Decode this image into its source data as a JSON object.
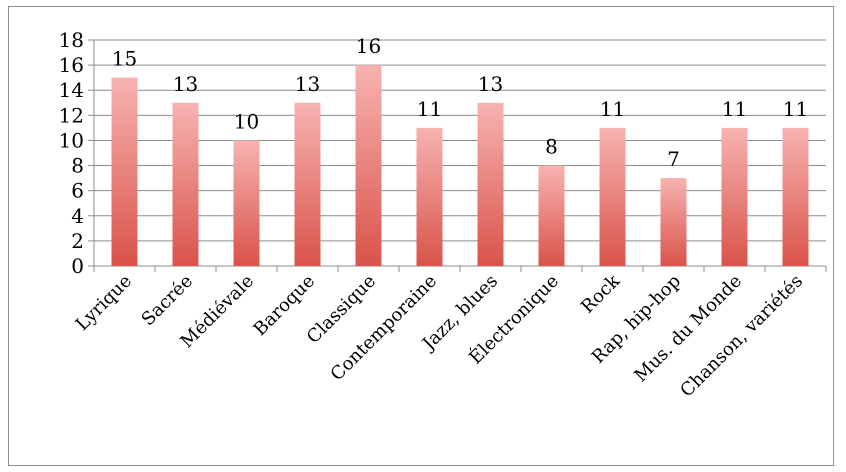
{
  "chart_data": {
    "type": "bar",
    "title": "",
    "xlabel": "",
    "ylabel": "",
    "categories": [
      "Lyrique",
      "Sacrée",
      "Médiévale",
      "Baroque",
      "Classique",
      "Contemporaine",
      "Jazz, blues",
      "Électronique",
      "Rock",
      "Rap, hip-hop",
      "Mus. du Monde",
      "Chanson, variétés"
    ],
    "values": [
      15,
      13,
      10,
      13,
      16,
      11,
      13,
      8,
      11,
      7,
      11,
      11
    ],
    "ylim": [
      0,
      18
    ],
    "yticks": [
      0,
      2,
      4,
      6,
      8,
      10,
      12,
      14,
      16,
      18
    ],
    "grid": true,
    "legend": "none",
    "colors": {
      "bar_top": "#f7b3b1",
      "bar_bottom": "#d9534a",
      "grid": "#8c8c8c"
    }
  }
}
